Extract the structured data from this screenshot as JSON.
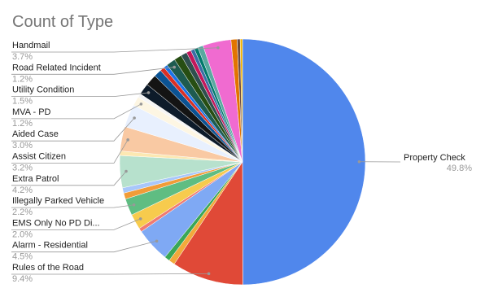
{
  "chart_data": {
    "type": "pie",
    "title": "Count of Type",
    "categories": [
      "Property Check",
      "Rules of the Road",
      null,
      null,
      "Alarm - Residential",
      null,
      "EMS Only No PD Di...",
      "Illegally Parked Vehicle",
      null,
      null,
      "Extra Patrol",
      null,
      "Assist Citizen",
      "Aided Case",
      "MVA - PD",
      null,
      "Utility Condition",
      null,
      null,
      null,
      null,
      "Road Related Incident",
      null,
      null,
      null,
      null,
      null,
      null,
      "Handmail",
      null,
      null,
      null
    ],
    "values": [
      49.8,
      9.4,
      0.8,
      0.7,
      4.5,
      0.5,
      2.0,
      2.2,
      0.8,
      0.7,
      4.2,
      0.6,
      3.2,
      3.0,
      1.2,
      0.5,
      1.5,
      1.5,
      1.0,
      0.6,
      0.5,
      1.2,
      1.0,
      0.8,
      0.6,
      0.5,
      0.5,
      0.7,
      3.7,
      0.8,
      0.4,
      0.3
    ],
    "value_labels": [
      "49.8%",
      "9.4%",
      null,
      null,
      "4.5%",
      null,
      "2.0%",
      "2.2%",
      null,
      null,
      "4.2%",
      null,
      "3.2%",
      "3.0%",
      "1.2%",
      null,
      "1.5%",
      null,
      null,
      null,
      null,
      "1.2%",
      null,
      null,
      null,
      null,
      null,
      null,
      "3.7%",
      null,
      null,
      null
    ],
    "colors": [
      "#5087ec",
      "#e04937",
      "#f2a93b",
      "#3aa757",
      "#7fa9f4",
      "#f07b72",
      "#f7cb4d",
      "#5fbd82",
      "#f19c38",
      "#a8c7fa",
      "#b7e1cd",
      "#fce8b2",
      "#f9c9a3",
      "#e8f0fe",
      "#fdf6e3",
      "#f5f5f5",
      "#0d1b2a",
      "#141414",
      "#0b5394",
      "#d93025",
      "#1a73e8",
      "#1e5b50",
      "#274e13",
      "#2f4f4f",
      "#c2185b",
      "#3a6ea5",
      "#00796b",
      "#5aa9a0",
      "#f06bd0",
      "#e37400",
      "#6d4c41",
      "#f4b400"
    ]
  }
}
